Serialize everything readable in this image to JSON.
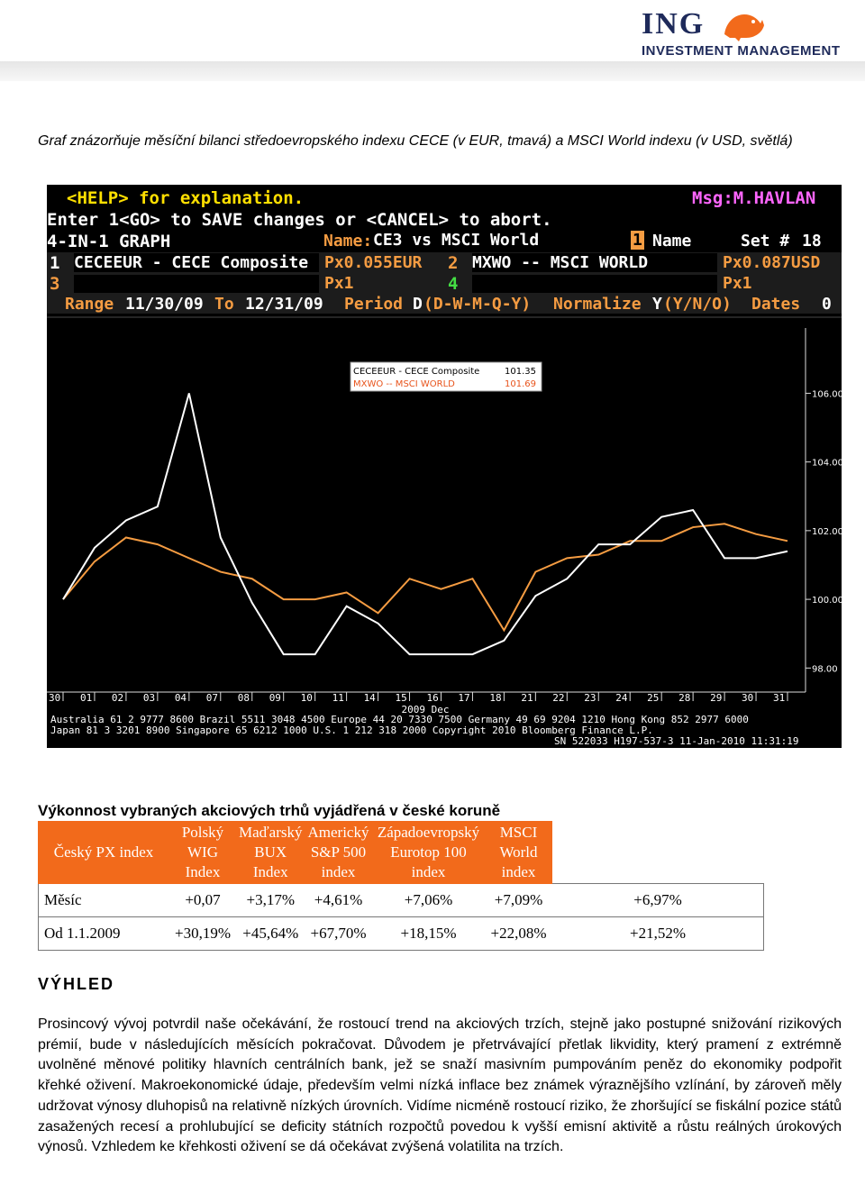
{
  "logo": {
    "brand": "ING",
    "subtitle": "INVESTMENT MANAGEMENT"
  },
  "caption": "Graf znázorňuje měsíční bilanci středoevropského indexu CECE (v EUR, tmavá) a MSCI World indexu (v USD, světlá)",
  "terminal": {
    "help": "<HELP> for explanation.",
    "msg": "Msg:M.HAVLAN",
    "enter": "Enter 1<GO> to SAVE changes or <CANCEL> to abort.",
    "graph_title": "4-IN-1 GRAPH",
    "name_label": "Name:",
    "name_value": "CE3 vs MSCI World",
    "name_num": "1",
    "name_word": "Name",
    "set_label": "Set #",
    "set_value": "18",
    "s1_num": "1",
    "s1_name": "CECEEUR - CECE Composite",
    "s1_px": "Px0.055EUR",
    "s2_num": "2",
    "s2_name": "MXWO -- MSCI WORLD",
    "s2_px": "Px0.087USD",
    "s3_num": "3",
    "s3_px": "Px1",
    "s4_num": "4",
    "s4_px": "Px1",
    "range_label": "Range",
    "range_from": "11/30/09",
    "range_to_label": "To",
    "range_to": "12/31/09",
    "period_label": "Period",
    "period_value": "D",
    "period_opts": "(D-W-M-Q-Y)",
    "normalize_label": "Normalize",
    "normalize_value": "Y",
    "normalize_opts": "(Y/N/O)",
    "dates_label": "Dates",
    "dates_value": "0",
    "footer1": "Australia 61 2 9777 8600 Brazil 5511 3048 4500 Europe 44 20 7330 7500 Germany 49 69 9204 1210 Hong Kong 852 2977 6000",
    "footer2": "Japan 81 3 3201 8900        Singapore 65 6212 1000      U.S. 1 212 318 2000        Copyright 2010 Bloomberg Finance L.P.",
    "footer3": "SN 522033 H197-537-3 11-Jan-2010 11:31:19"
  },
  "chart_data": {
    "type": "line",
    "x": [
      "30",
      "01",
      "02",
      "03",
      "04",
      "07",
      "08",
      "09",
      "10",
      "11",
      "14",
      "15",
      "16",
      "17",
      "18",
      "21",
      "22",
      "23",
      "24",
      "25",
      "28",
      "29",
      "30",
      "31"
    ],
    "x_group_label": "2009 Dec",
    "yticks": [
      "106.00",
      "104.00",
      "102.00",
      "100.00",
      "98.00"
    ],
    "ylim": [
      97.3,
      107.9
    ],
    "legend": [
      {
        "label": "CECEEUR - CECE Composite",
        "value": "101.35",
        "color": "#ffffff"
      },
      {
        "label": "MXWO -- MSCI WORLD",
        "value": "101.69",
        "color": "#f59c42"
      }
    ],
    "series": [
      {
        "name": "CECEEUR - CECE Composite",
        "color": "#ffffff",
        "values": [
          100.0,
          101.5,
          102.3,
          102.7,
          106.0,
          101.8,
          99.9,
          98.4,
          98.4,
          99.8,
          99.3,
          98.4,
          98.4,
          98.4,
          98.8,
          100.1,
          100.6,
          101.6,
          101.6,
          102.4,
          102.6,
          101.2,
          101.2,
          101.4
        ]
      },
      {
        "name": "MXWO -- MSCI WORLD",
        "color": "#f59c42",
        "values": [
          100.0,
          101.1,
          101.8,
          101.6,
          101.2,
          100.8,
          100.6,
          100.0,
          100.0,
          100.2,
          99.6,
          100.6,
          100.3,
          100.6,
          99.1,
          100.8,
          101.2,
          101.3,
          101.7,
          101.7,
          102.1,
          102.2,
          101.9,
          101.7
        ]
      }
    ]
  },
  "performance": {
    "title": "Výkonnost vybraných akciových trhů vyjádřená v české koruně",
    "headers": [
      "Český PX index",
      "Polský WIG Index",
      "Maďarský BUX Index",
      "Americký S&P 500 index",
      "Západoevropský Eurotop 100 index",
      "MSCI World index"
    ],
    "rows": [
      {
        "label": "Měsíc",
        "values": [
          "+0,07",
          "+3,17%",
          "+4,61%",
          "+7,06%",
          "+7,09%",
          "+6,97%"
        ]
      },
      {
        "label": "Od 1.1.2009",
        "values": [
          "+30,19%",
          "+45,64%",
          "+67,70%",
          "+18,15%",
          "+22,08%",
          "+21,52%"
        ]
      }
    ]
  },
  "outlook": {
    "heading": "VÝHLED",
    "paragraph": "Prosincový vývoj potvrdil naše očekávání, že rostoucí trend na akciových trzích, stejně jako postupné snižování rizikových prémií, bude v následujících měsících pokračovat. Důvodem je přetrvávající přetlak likvidity, který pramení z extrémně uvolněné měnové politiky hlavních centrálních bank, jež se snaží masivním pumpováním peněz do ekonomiky podpořit křehké oživení. Makroekonomické údaje, především velmi nízká inflace bez známek výraznějšího vzlínání, by zároveň měly udržovat výnosy dluhopisů na relativně nízkých úrovních. Vidíme nicméně rostoucí riziko, že zhoršující se fiskální pozice států zasažených recesí a prohlubující se deficity státních rozpočtů povedou k vyšší emisní aktivitě a růstu reálných úrokových výnosů. Vzhledem ke křehkosti oživení se dá očekávat zvýšená volatilita na trzích."
  },
  "colors": {
    "orange": "#f26a1b",
    "navy": "#1e2a5a",
    "bb_orange": "#f59c42",
    "bb_yellow": "#ffe000"
  }
}
